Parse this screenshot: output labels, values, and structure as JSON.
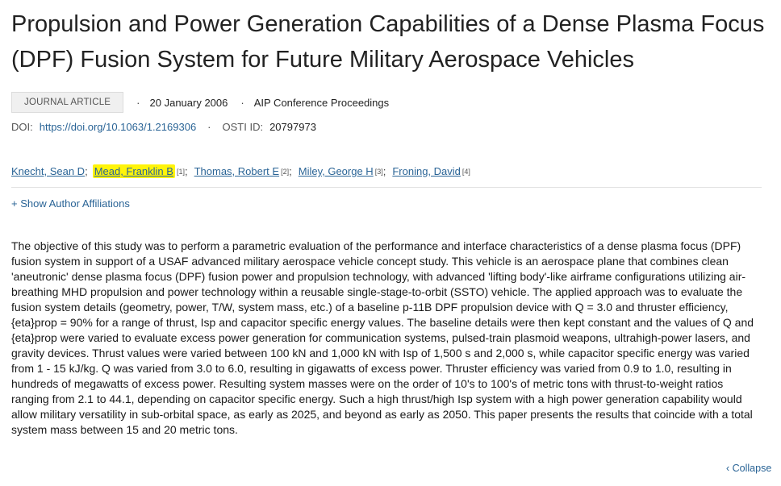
{
  "article": {
    "title": "Propulsion and Power Generation Capabilities of a Dense Plasma Focus (DPF) Fusion System for Future Military Aerospace Vehicles",
    "type_badge": "JOURNAL ARTICLE",
    "date": "20 January 2006",
    "publisher": "AIP Conference Proceedings",
    "doi_label": "DOI:",
    "doi_link": "https://doi.org/10.1063/1.2169306",
    "osti_label": "OSTI ID:",
    "osti_id": "20797973"
  },
  "authors": [
    {
      "name": "Knecht, Sean D",
      "sup": "",
      "highlight": false
    },
    {
      "name": "Mead, Franklin B",
      "sup": "[1]",
      "highlight": true
    },
    {
      "name": "Thomas, Robert E",
      "sup": "[2]",
      "highlight": false
    },
    {
      "name": "Miley, George H",
      "sup": "[3]",
      "highlight": false
    },
    {
      "name": "Froning, David",
      "sup": "[4]",
      "highlight": false
    }
  ],
  "author_sep": ";",
  "show_affiliations": "+ Show Author Affiliations",
  "abstract": "The objective of this study was to perform a parametric evaluation of the performance and interface characteristics of a dense plasma focus (DPF) fusion system in support of a USAF advanced military aerospace vehicle concept study. This vehicle is an aerospace plane that combines clean 'aneutronic' dense plasma focus (DPF) fusion power and propulsion technology, with advanced 'lifting body'-like airframe configurations utilizing air-breathing MHD propulsion and power technology within a reusable single-stage-to-orbit (SSTO) vehicle. The applied approach was to evaluate the fusion system details (geometry, power, T/W, system mass, etc.) of a baseline p-11B DPF propulsion device with Q = 3.0 and thruster efficiency, {eta}prop = 90% for a range of thrust, Isp and capacitor specific energy values. The baseline details were then kept constant and the values of Q and {eta}prop were varied to evaluate excess power generation for communication systems, pulsed-train plasmoid weapons, ultrahigh-power lasers, and gravity devices. Thrust values were varied between 100 kN and 1,000 kN with Isp of 1,500 s and 2,000 s, while capacitor specific energy was varied from 1 - 15 kJ/kg. Q was varied from 3.0 to 6.0, resulting in gigawatts of excess power. Thruster efficiency was varied from 0.9 to 1.0, resulting in hundreds of megawatts of excess power. Resulting system masses were on the order of 10's to 100's of metric tons with thrust-to-weight ratios ranging from 2.1 to 44.1, depending on capacitor specific energy. Such a high thrust/high Isp system with a high power generation capability would allow military versatility in sub-orbital space, as early as 2025, and beyond as early as 2050. This paper presents the results that coincide with a total system mass between 15 and 20 metric tons.",
  "collapse_label": "‹ Collapse",
  "colors": {
    "link": "#2a6496",
    "highlight": "#fff40a",
    "badge_bg": "#f0f0f0"
  }
}
